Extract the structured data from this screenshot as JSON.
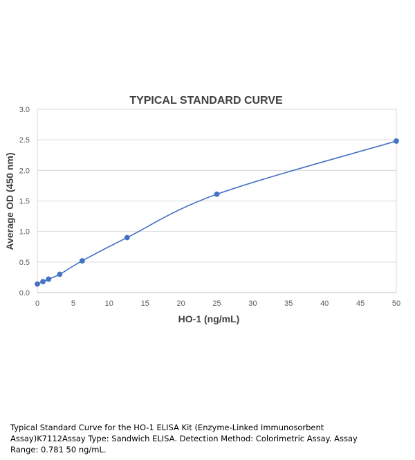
{
  "chart_data": {
    "type": "line",
    "title": "TYPICAL STANDARD CURVE",
    "xlabel": "HO-1 (ng/mL)",
    "ylabel": "Average OD (450 nm)",
    "xlim": [
      0,
      50
    ],
    "ylim": [
      0,
      3.0
    ],
    "xticks": [
      "0",
      "5",
      "10",
      "15",
      "20",
      "25",
      "30",
      "35",
      "40",
      "45",
      "50"
    ],
    "yticks": [
      "0.0",
      "0.5",
      "1.0",
      "1.5",
      "2.0",
      "2.5",
      "3.0"
    ],
    "grid": "horizontal",
    "series": [
      {
        "x": [
          0,
          0.781,
          1.563,
          3.125,
          6.25,
          12.5,
          25,
          50
        ],
        "y": [
          0.14,
          0.18,
          0.22,
          0.3,
          0.52,
          0.9,
          1.61,
          2.48
        ]
      }
    ],
    "colors": {
      "line": "#4472C4",
      "grid": "#D9D9D9",
      "axis_text": "#595959",
      "title_text": "#404040"
    }
  },
  "caption": "Typical Standard Curve for the HO-1 ELISA Kit (Enzyme-Linked Immunosorbent Assay)K7112Assay Type: Sandwich ELISA. Detection Method: Colorimetric Assay. Assay Range: 0.781 50 ng/mL."
}
